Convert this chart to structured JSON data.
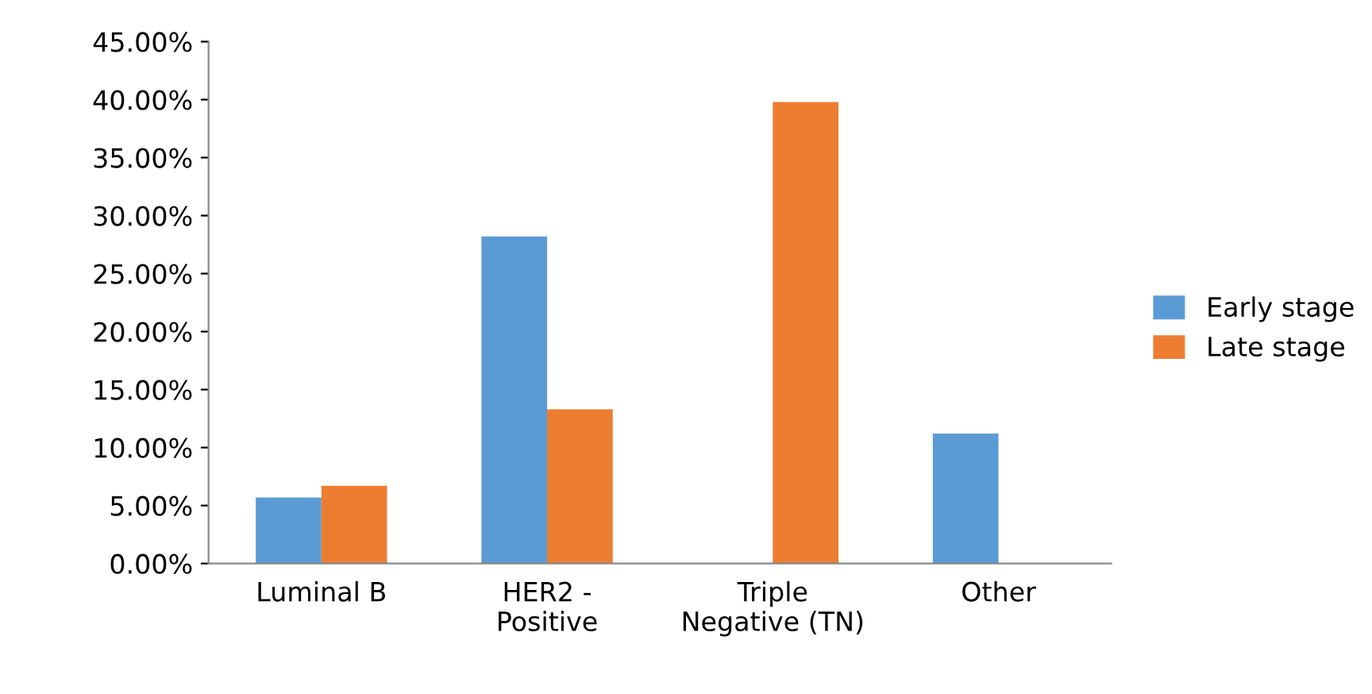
{
  "chart_data": {
    "type": "bar",
    "categories": [
      "Luminal B",
      "HER2 -\nPositive",
      "Triple\nNegative (TN)",
      "Other"
    ],
    "series": [
      {
        "name": "Early stage",
        "color": "#5b9bd5",
        "values": [
          5.7,
          28.2,
          0,
          11.2
        ]
      },
      {
        "name": "Late stage",
        "color": "#ed7d31",
        "values": [
          6.7,
          13.3,
          39.8,
          0
        ]
      }
    ],
    "ylim": [
      0,
      45
    ],
    "yticks": [
      {
        "value": 0,
        "label": "0.00%"
      },
      {
        "value": 5,
        "label": "5.00%"
      },
      {
        "value": 10,
        "label": "10.00%"
      },
      {
        "value": 15,
        "label": "15.00%"
      },
      {
        "value": 20,
        "label": "20.00%"
      },
      {
        "value": 25,
        "label": "25.00%"
      },
      {
        "value": 30,
        "label": "30.00%"
      },
      {
        "value": 35,
        "label": "35.00%"
      },
      {
        "value": 40,
        "label": "40.00%"
      },
      {
        "value": 45,
        "label": "45.00%"
      }
    ],
    "grid": false,
    "legend": "right"
  }
}
